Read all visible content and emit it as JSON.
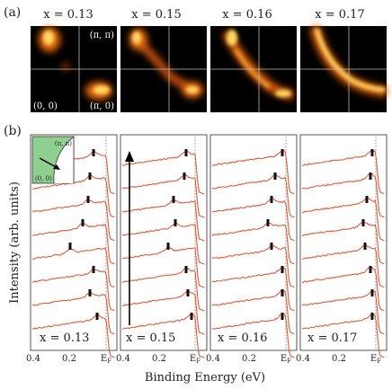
{
  "figure": {
    "panel_a_label": "(a)",
    "panel_b_label": "(b)"
  },
  "panel_a": {
    "corner_labels": {
      "top_right": "(π, π)",
      "bottom_left": "(0, 0)",
      "bottom_right": "(π, 0)"
    },
    "maps": [
      {
        "title": "x = 0.13"
      },
      {
        "title": "x = 0.15"
      },
      {
        "title": "x = 0.16"
      },
      {
        "title": "x = 0.17"
      }
    ],
    "colors": {
      "background": "#000000",
      "hot": "#ffd860",
      "warm": "#e86a10",
      "grid_line": "#bbbbbb"
    }
  },
  "panel_b": {
    "y_axis_label": "Intensity (arb. units)",
    "x_axis_label": "Binding Energy (eV)",
    "x_tick_labels": [
      "0.4",
      "0.2",
      "E_F"
    ],
    "inset": {
      "label_top": "(π, π)",
      "label_bottom": "(0, 0)",
      "fill": "#8fcf8f"
    },
    "colors": {
      "curve": "#e25a3a",
      "marker": "#111111",
      "arrow": "#000000"
    }
  },
  "chart_data": {
    "type": "line",
    "xlabel": "Binding Energy (eV)",
    "ylabel": "Intensity (arb. units)",
    "x_ticks": [
      0.4,
      0.2,
      0.0
    ],
    "panels": [
      {
        "label": "x = 0.13",
        "n_curves": 8,
        "marker_energies_eV": [
          0.07,
          0.09,
          0.1,
          0.13,
          0.2,
          0.07,
          0.09,
          0.05
        ]
      },
      {
        "label": "x = 0.15",
        "n_curves": 8,
        "marker_energies_eV": [
          0.05,
          0.06,
          0.12,
          0.11,
          0.15,
          0.05,
          0.04,
          0.02
        ]
      },
      {
        "label": "x = 0.16",
        "n_curves": 8,
        "marker_energies_eV": [
          0.02,
          0.06,
          0.08,
          0.1,
          0.08,
          0.02,
          0.02,
          0.02
        ]
      },
      {
        "label": "x = 0.17",
        "n_curves": 8,
        "marker_energies_eV": [
          0.02,
          0.03,
          0.05,
          0.07,
          0.06,
          0.03,
          0.02,
          0.02
        ]
      }
    ]
  }
}
